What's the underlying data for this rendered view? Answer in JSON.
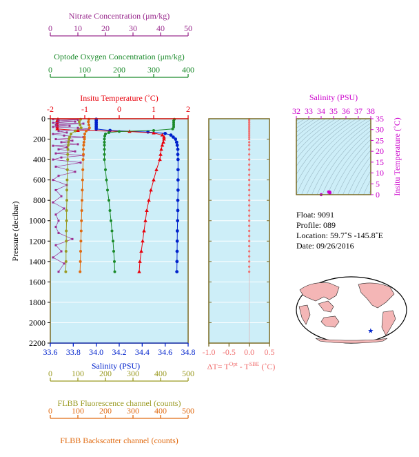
{
  "colors": {
    "plot_bg": "#cdeef8",
    "temperature": "#e8000b",
    "salinity": "#0022cc",
    "oxygen": "#1a8a2a",
    "nitrate": "#9b2d8f",
    "fluorescence": "#9a9a22",
    "backscatter": "#e06a10",
    "delta_t": "#f07070",
    "axis_brown": "#7a6a22",
    "ts_label": "#cc00cc",
    "land": "#f4b6b6"
  },
  "chart_data": [
    {
      "type": "line",
      "ylabel": "Pressure (decibar)",
      "ylim": [
        2200,
        0
      ],
      "yticks": [
        "0",
        "200",
        "400",
        "600",
        "800",
        "1000",
        "1200",
        "1400",
        "1600",
        "1800",
        "2000",
        "2200"
      ],
      "axes": {
        "salinity": {
          "label": "Salinity (PSU)",
          "range": [
            33.6,
            34.8
          ],
          "ticks": [
            "33.6",
            "33.8",
            "34.0",
            "34.2",
            "34.4",
            "34.6",
            "34.8"
          ]
        },
        "temperature": {
          "label": "Insitu Temperature (˚C)",
          "range": [
            -2,
            2
          ],
          "ticks": [
            "-2",
            "-1",
            "0",
            "1",
            "2"
          ]
        },
        "oxygen": {
          "label": "Optode Oxygen Concentration (μm/kg)",
          "range": [
            0,
            400
          ],
          "ticks": [
            "0",
            "100",
            "200",
            "300",
            "400"
          ]
        },
        "nitrate": {
          "label": "Nitrate Concentration (μm/kg)",
          "range": [
            0,
            50
          ],
          "ticks": [
            "0",
            "10",
            "20",
            "30",
            "40",
            "50"
          ]
        },
        "fluorescence": {
          "label": "FLBB Fluorescence channel (counts)",
          "range": [
            0,
            500
          ],
          "ticks": [
            "0",
            "100",
            "200",
            "300",
            "400",
            "500"
          ]
        },
        "backscatter": {
          "label": "FLBB Backscatter channel (counts)",
          "range": [
            0,
            500
          ],
          "ticks": [
            "0",
            "100",
            "200",
            "300",
            "400",
            "500"
          ]
        }
      },
      "series": [
        {
          "name": "Salinity (PSU)",
          "axis": "salinity",
          "points": [
            [
              34.0,
              5
            ],
            [
              34.0,
              20
            ],
            [
              34.0,
              40
            ],
            [
              34.0,
              60
            ],
            [
              34.0,
              80
            ],
            [
              34.0,
              100
            ],
            [
              34.12,
              115
            ],
            [
              34.45,
              130
            ],
            [
              34.6,
              145
            ],
            [
              34.65,
              160
            ],
            [
              34.67,
              180
            ],
            [
              34.69,
              200
            ],
            [
              34.7,
              230
            ],
            [
              34.705,
              260
            ],
            [
              34.71,
              300
            ],
            [
              34.71,
              350
            ],
            [
              34.712,
              400
            ],
            [
              34.712,
              500
            ],
            [
              34.712,
              600
            ],
            [
              34.712,
              700
            ],
            [
              34.71,
              800
            ],
            [
              34.71,
              900
            ],
            [
              34.708,
              1000
            ],
            [
              34.706,
              1100
            ],
            [
              34.705,
              1200
            ],
            [
              34.704,
              1300
            ],
            [
              34.703,
              1400
            ],
            [
              34.702,
              1500
            ]
          ]
        },
        {
          "name": "Insitu Temperature (˚C)",
          "axis": "temperature",
          "points": [
            [
              -1.78,
              5
            ],
            [
              -1.8,
              20
            ],
            [
              -1.8,
              40
            ],
            [
              -1.8,
              60
            ],
            [
              -1.8,
              80
            ],
            [
              -1.8,
              100
            ],
            [
              -1.2,
              115
            ],
            [
              0.3,
              125
            ],
            [
              1.0,
              140
            ],
            [
              1.25,
              160
            ],
            [
              1.3,
              180
            ],
            [
              1.3,
              200
            ],
            [
              1.28,
              230
            ],
            [
              1.25,
              260
            ],
            [
              1.22,
              300
            ],
            [
              1.2,
              350
            ],
            [
              1.18,
              400
            ],
            [
              1.08,
              500
            ],
            [
              1.0,
              600
            ],
            [
              0.92,
              700
            ],
            [
              0.86,
              800
            ],
            [
              0.8,
              900
            ],
            [
              0.76,
              1000
            ],
            [
              0.72,
              1100
            ],
            [
              0.68,
              1200
            ],
            [
              0.64,
              1300
            ],
            [
              0.6,
              1400
            ],
            [
              0.58,
              1500
            ]
          ]
        },
        {
          "name": "Optode Oxygen Concentration (μm/kg)",
          "axis": "oxygen",
          "points": [
            [
              360,
              5
            ],
            [
              358,
              20
            ],
            [
              358,
              40
            ],
            [
              358,
              60
            ],
            [
              358,
              80
            ],
            [
              355,
              100
            ],
            [
              300,
              115
            ],
            [
              200,
              125
            ],
            [
              170,
              135
            ],
            [
              160,
              150
            ],
            [
              158,
              170
            ],
            [
              157,
              200
            ],
            [
              157,
              230
            ],
            [
              157,
              260
            ],
            [
              157,
              300
            ],
            [
              157,
              350
            ],
            [
              157,
              400
            ],
            [
              160,
              500
            ],
            [
              163,
              600
            ],
            [
              166,
              700
            ],
            [
              170,
              800
            ],
            [
              173,
              900
            ],
            [
              176,
              1000
            ],
            [
              179,
              1100
            ],
            [
              182,
              1200
            ],
            [
              184,
              1300
            ],
            [
              186,
              1400
            ],
            [
              187,
              1500
            ]
          ]
        },
        {
          "name": "Nitrate Concentration (μm/kg)",
          "axis": "nitrate",
          "points": [
            [
              1,
              5
            ],
            [
              10,
              10
            ],
            [
              3,
              20
            ],
            [
              9,
              28
            ],
            [
              1,
              40
            ],
            [
              12,
              48
            ],
            [
              2,
              60
            ],
            [
              7,
              70
            ],
            [
              1,
              80
            ],
            [
              10,
              90
            ],
            [
              14,
              100
            ],
            [
              3,
              120
            ],
            [
              6,
              135
            ],
            [
              1,
              150
            ],
            [
              5,
              165
            ],
            [
              12,
              180
            ],
            [
              2,
              200
            ],
            [
              8,
              215
            ],
            [
              4,
              230
            ],
            [
              10,
              250
            ],
            [
              1,
              265
            ],
            [
              6,
              280
            ],
            [
              3,
              300
            ],
            [
              9,
              320
            ],
            [
              2,
              340
            ],
            [
              12,
              360
            ],
            [
              4,
              380
            ],
            [
              1,
              400
            ],
            [
              11,
              430
            ],
            [
              2,
              470
            ],
            [
              9,
              520
            ],
            [
              3,
              560
            ],
            [
              1,
              600
            ],
            [
              6,
              650
            ],
            [
              2,
              700
            ],
            [
              4,
              760
            ],
            [
              1,
              820
            ],
            [
              5,
              880
            ],
            [
              2,
              940
            ],
            [
              3,
              1000
            ],
            [
              2,
              1060
            ],
            [
              3,
              1120
            ],
            [
              8,
              1180
            ],
            [
              2,
              1240
            ],
            [
              4,
              1300
            ],
            [
              1,
              1360
            ],
            [
              5,
              1420
            ],
            [
              3,
              1500
            ]
          ]
        },
        {
          "name": "FLBB Fluorescence channel (counts)",
          "axis": "fluorescence",
          "points": [
            [
              110,
              5
            ],
            [
              105,
              30
            ],
            [
              108,
              60
            ],
            [
              112,
              90
            ],
            [
              90,
              120
            ],
            [
              75,
              150
            ],
            [
              70,
              180
            ],
            [
              68,
              200
            ],
            [
              66,
              230
            ],
            [
              65,
              260
            ],
            [
              64,
              300
            ],
            [
              63,
              350
            ],
            [
              63,
              400
            ],
            [
              62,
              500
            ],
            [
              61,
              600
            ],
            [
              60,
              700
            ],
            [
              60,
              800
            ],
            [
              59,
              900
            ],
            [
              59,
              1000
            ],
            [
              58,
              1100
            ],
            [
              58,
              1200
            ],
            [
              57,
              1300
            ],
            [
              57,
              1400
            ],
            [
              56,
              1500
            ]
          ]
        },
        {
          "name": "FLBB Backscatter channel (counts)",
          "axis": "backscatter",
          "points": [
            [
              140,
              5
            ],
            [
              138,
              30
            ],
            [
              140,
              60
            ],
            [
              142,
              90
            ],
            [
              130,
              120
            ],
            [
              125,
              150
            ],
            [
              124,
              180
            ],
            [
              124,
              200
            ],
            [
              122,
              230
            ],
            [
              121,
              260
            ],
            [
              120,
              300
            ],
            [
              120,
              350
            ],
            [
              119,
              400
            ],
            [
              118,
              500
            ],
            [
              117,
              600
            ],
            [
              116,
              700
            ],
            [
              115,
              800
            ],
            [
              114,
              900
            ],
            [
              113,
              1000
            ],
            [
              112,
              1100
            ],
            [
              111,
              1200
            ],
            [
              110,
              1300
            ],
            [
              109,
              1400
            ],
            [
              108,
              1500
            ]
          ]
        }
      ]
    },
    {
      "type": "scatter",
      "xlabel": "ΔT= T",
      "xlabel_sup1": "Opt",
      "xlabel_mid": " - T",
      "xlabel_sup2": "SBE",
      "xlabel_unit": " (˚C)",
      "xlim": [
        -1.0,
        0.5
      ],
      "xticks": [
        "-1.0",
        "-0.5",
        "0.0",
        "0.5"
      ],
      "ylim": [
        2200,
        0
      ],
      "series": [
        {
          "name": "ΔT",
          "points": [
            [
              0.0,
              5
            ],
            [
              0.0,
              20
            ],
            [
              0.0,
              40
            ],
            [
              0.0,
              60
            ],
            [
              0.0,
              80
            ],
            [
              0.0,
              100
            ],
            [
              0.0,
              120
            ],
            [
              0.0,
              140
            ],
            [
              0.0,
              160
            ],
            [
              0.0,
              180
            ],
            [
              0.0,
              200
            ],
            [
              0.0,
              230
            ],
            [
              0.0,
              260
            ],
            [
              0.0,
              300
            ],
            [
              0.0,
              350
            ],
            [
              0.0,
              400
            ],
            [
              0.0,
              450
            ],
            [
              0.0,
              500
            ],
            [
              0.0,
              550
            ],
            [
              0.0,
              600
            ],
            [
              0.0,
              650
            ],
            [
              0.0,
              700
            ],
            [
              0.0,
              750
            ],
            [
              0.0,
              800
            ],
            [
              0.0,
              850
            ],
            [
              0.0,
              900
            ],
            [
              0.0,
              950
            ],
            [
              0.0,
              1000
            ],
            [
              0.0,
              1050
            ],
            [
              0.0,
              1100
            ],
            [
              0.0,
              1150
            ],
            [
              0.0,
              1200
            ],
            [
              0.0,
              1250
            ],
            [
              0.0,
              1300
            ],
            [
              0.0,
              1350
            ],
            [
              0.0,
              1400
            ],
            [
              0.0,
              1450
            ],
            [
              0.0,
              1500
            ]
          ]
        }
      ]
    },
    {
      "type": "scatter",
      "xlabel": "Salinity (PSU)",
      "ylabel": "Insitu Temperature (˚C)",
      "xlim": [
        32,
        38
      ],
      "ylim": [
        0,
        35
      ],
      "xticks": [
        "32",
        "33",
        "34",
        "35",
        "36",
        "37",
        "38"
      ],
      "yticks": [
        "0",
        "5",
        "10",
        "15",
        "20",
        "25",
        "30",
        "35"
      ],
      "points": [
        [
          34.7,
          0.6
        ],
        [
          34.7,
          0.8
        ],
        [
          34.7,
          1.0
        ],
        [
          34.7,
          1.2
        ],
        [
          34.0,
          -1.8
        ],
        [
          34.6,
          1.3
        ],
        [
          34.68,
          0.9
        ]
      ]
    }
  ],
  "info": {
    "float": "Float:  9091",
    "profile": "Profile:  089",
    "location": "Location:  59.7˚S  -145.8˚E",
    "date": "Date:  09/26/2016"
  },
  "map": {
    "marker_lat": -59.7,
    "marker_lon": -145.8
  }
}
